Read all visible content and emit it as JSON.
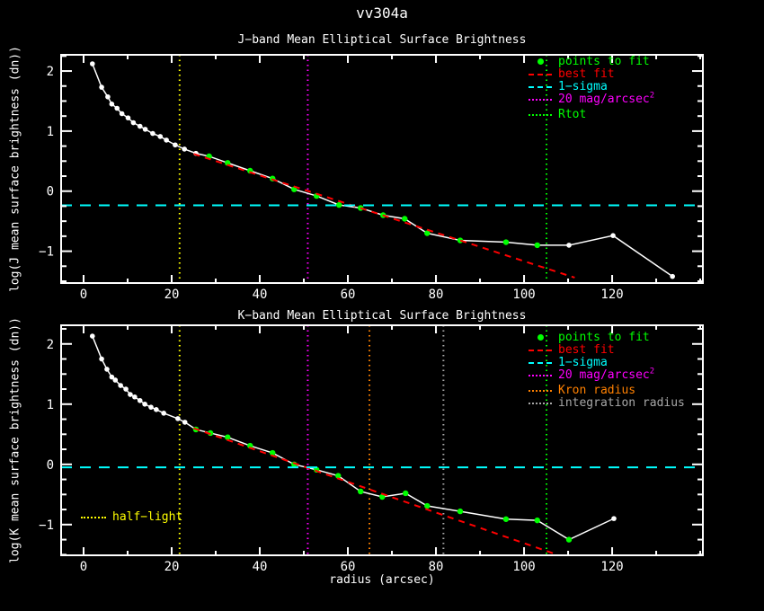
{
  "title": "vv304a",
  "xlabel": "radius (arcsec)",
  "panels": [
    {
      "title": "J−band Mean Elliptical Surface Brightness",
      "ylabel": "log(J mean surface brightness (dn))",
      "legend": [
        {
          "label": "points to fit",
          "color": "#00ff00",
          "style": "point"
        },
        {
          "label": "best fit",
          "color": "#ff0000",
          "style": "dash"
        },
        {
          "label": "1−sigma",
          "color": "#00ffff",
          "style": "dash"
        },
        {
          "label": "20 mag/arcsec",
          "sup": "2",
          "color": "#ff00ff",
          "style": "dot"
        },
        {
          "label": "Rtot",
          "color": "#00ff00",
          "style": "dot"
        }
      ]
    },
    {
      "title": "K−band Mean Elliptical Surface Brightness",
      "ylabel": "log(K mean surface brightness (dn))",
      "legend": [
        {
          "label": "points to fit",
          "color": "#00ff00",
          "style": "point"
        },
        {
          "label": "best fit",
          "color": "#ff0000",
          "style": "dash"
        },
        {
          "label": "1−sigma",
          "color": "#00ffff",
          "style": "dash"
        },
        {
          "label": "20 mag/arcsec",
          "sup": "2",
          "color": "#ff00ff",
          "style": "dot"
        },
        {
          "label": "Kron radius",
          "color": "#ff8000",
          "style": "dot"
        },
        {
          "label": "integration radius",
          "color": "#a8a8a8",
          "style": "dot"
        }
      ],
      "extra": {
        "label": "half−light",
        "color": "#ffff00",
        "style": "dot"
      }
    }
  ],
  "chart_data": [
    {
      "type": "line",
      "band": "J",
      "title": "J−band Mean Elliptical Surface Brightness",
      "xlabel": "radius (arcsec)",
      "ylabel": "log(J mean surface brightness (dn))",
      "xlim": [
        -5.1,
        140.6
      ],
      "ylim": [
        -1.53,
        2.27
      ],
      "xticks": {
        "major": [
          0,
          20,
          40,
          60,
          80,
          100,
          120
        ],
        "minor_step": 10
      },
      "yticks": {
        "major": [
          -1,
          0,
          1,
          2
        ],
        "minor_step": 0.25
      },
      "grid": false,
      "legend_position": "top-right",
      "series": [
        {
          "name": "surface-brightness-profile",
          "color": "#ffffff",
          "style": "solid-markers",
          "points": [
            [
              2.0,
              2.12
            ],
            [
              4.1,
              1.73
            ],
            [
              5.5,
              1.57
            ],
            [
              6.4,
              1.45
            ],
            [
              7.6,
              1.38
            ],
            [
              8.7,
              1.29
            ],
            [
              10.1,
              1.22
            ],
            [
              11.3,
              1.14
            ],
            [
              12.8,
              1.08
            ],
            [
              14.0,
              1.03
            ],
            [
              15.7,
              0.96
            ],
            [
              17.4,
              0.91
            ],
            [
              18.8,
              0.85
            ],
            [
              20.8,
              0.77
            ],
            [
              22.9,
              0.7
            ],
            [
              25.5,
              0.63
            ],
            [
              28.5,
              0.58
            ],
            [
              32.7,
              0.47
            ],
            [
              37.8,
              0.34
            ],
            [
              42.9,
              0.21
            ],
            [
              47.8,
              0.03
            ],
            [
              52.9,
              -0.08
            ],
            [
              58.0,
              -0.23
            ],
            [
              62.9,
              -0.28
            ],
            [
              68.0,
              -0.4
            ],
            [
              72.9,
              -0.46
            ],
            [
              78.0,
              -0.7
            ],
            [
              85.5,
              -0.82
            ],
            [
              95.9,
              -0.85
            ],
            [
              103.0,
              -0.9
            ],
            [
              110.2,
              -0.9
            ],
            [
              120.2,
              -0.74
            ],
            [
              133.7,
              -1.42
            ]
          ]
        },
        {
          "name": "points-to-fit",
          "color": "#00ff00",
          "style": "markers",
          "points": [
            [
              28.5,
              0.58
            ],
            [
              32.7,
              0.47
            ],
            [
              37.8,
              0.34
            ],
            [
              42.9,
              0.21
            ],
            [
              47.8,
              0.03
            ],
            [
              52.9,
              -0.08
            ],
            [
              58.0,
              -0.23
            ],
            [
              62.9,
              -0.28
            ],
            [
              68.0,
              -0.4
            ],
            [
              72.9,
              -0.46
            ],
            [
              78.0,
              -0.7
            ],
            [
              85.5,
              -0.82
            ],
            [
              95.9,
              -0.85
            ],
            [
              103.0,
              -0.9
            ]
          ]
        },
        {
          "name": "best-fit",
          "color": "#ff0000",
          "style": "dashed",
          "points": [
            [
              25.0,
              0.62
            ],
            [
              111.5,
              -1.44
            ]
          ]
        },
        {
          "name": "1-sigma",
          "color": "#00ffff",
          "style": "dashed-horizontal",
          "y": -0.235
        }
      ],
      "vlines": [
        {
          "name": "half-light",
          "x": 21.8,
          "color": "#ffff00"
        },
        {
          "name": "20-mag-arcsec2",
          "x": 50.9,
          "color": "#ff00ff"
        },
        {
          "name": "Rtot",
          "x": 105.1,
          "color": "#00ff00"
        }
      ]
    },
    {
      "type": "line",
      "band": "K",
      "title": "K−band Mean Elliptical Surface Brightness",
      "xlabel": "radius (arcsec)",
      "ylabel": "log(K mean surface brightness (dn))",
      "xlim": [
        -5.1,
        140.6
      ],
      "ylim": [
        -1.51,
        2.31
      ],
      "xticks": {
        "major": [
          0,
          20,
          40,
          60,
          80,
          100,
          120
        ],
        "minor_step": 10
      },
      "yticks": {
        "major": [
          -1,
          0,
          1,
          2
        ],
        "minor_step": 0.25
      },
      "grid": false,
      "legend_position": "top-right",
      "series": [
        {
          "name": "surface-brightness-profile",
          "color": "#ffffff",
          "style": "solid-markers",
          "points": [
            [
              2.0,
              2.13
            ],
            [
              4.1,
              1.75
            ],
            [
              5.3,
              1.58
            ],
            [
              6.4,
              1.45
            ],
            [
              7.2,
              1.4
            ],
            [
              8.4,
              1.31
            ],
            [
              9.6,
              1.25
            ],
            [
              10.6,
              1.16
            ],
            [
              11.6,
              1.12
            ],
            [
              12.8,
              1.06
            ],
            [
              13.9,
              1.0
            ],
            [
              15.3,
              0.95
            ],
            [
              16.5,
              0.91
            ],
            [
              18.2,
              0.85
            ],
            [
              21.4,
              0.76
            ],
            [
              23.0,
              0.7
            ],
            [
              25.5,
              0.58
            ],
            [
              28.8,
              0.52
            ],
            [
              32.7,
              0.45
            ],
            [
              37.8,
              0.31
            ],
            [
              42.9,
              0.19
            ],
            [
              47.8,
              0.0
            ],
            [
              52.9,
              -0.09
            ],
            [
              57.8,
              -0.19
            ],
            [
              62.9,
              -0.45
            ],
            [
              67.8,
              -0.54
            ],
            [
              73.1,
              -0.48
            ],
            [
              78.0,
              -0.69
            ],
            [
              85.5,
              -0.78
            ],
            [
              95.9,
              -0.91
            ],
            [
              103.0,
              -0.93
            ],
            [
              110.2,
              -1.25
            ],
            [
              120.4,
              -0.9
            ]
          ]
        },
        {
          "name": "points-to-fit",
          "color": "#00ff00",
          "style": "markers",
          "points": [
            [
              25.5,
              0.58
            ],
            [
              28.8,
              0.52
            ],
            [
              32.7,
              0.45
            ],
            [
              37.8,
              0.31
            ],
            [
              42.9,
              0.19
            ],
            [
              47.8,
              0.0
            ],
            [
              52.9,
              -0.09
            ],
            [
              57.8,
              -0.19
            ],
            [
              62.9,
              -0.45
            ],
            [
              67.8,
              -0.54
            ],
            [
              73.1,
              -0.48
            ],
            [
              78.0,
              -0.69
            ],
            [
              85.5,
              -0.78
            ],
            [
              95.9,
              -0.91
            ],
            [
              103.0,
              -0.93
            ],
            [
              110.2,
              -1.25
            ]
          ]
        },
        {
          "name": "best-fit",
          "color": "#ff0000",
          "style": "dashed",
          "points": [
            [
              25.0,
              0.6
            ],
            [
              107.5,
              -1.5
            ]
          ]
        },
        {
          "name": "1-sigma",
          "color": "#00ffff",
          "style": "dashed-horizontal",
          "y": -0.05
        }
      ],
      "vlines": [
        {
          "name": "half-light",
          "x": 21.8,
          "color": "#ffff00"
        },
        {
          "name": "20-mag-arcsec2",
          "x": 50.9,
          "color": "#ff00ff"
        },
        {
          "name": "Kron-radius",
          "x": 64.9,
          "color": "#ff8000"
        },
        {
          "name": "integration-radius",
          "x": 81.7,
          "color": "#a8a8a8"
        },
        {
          "name": "Rtot",
          "x": 105.1,
          "color": "#00ff00"
        }
      ]
    }
  ]
}
